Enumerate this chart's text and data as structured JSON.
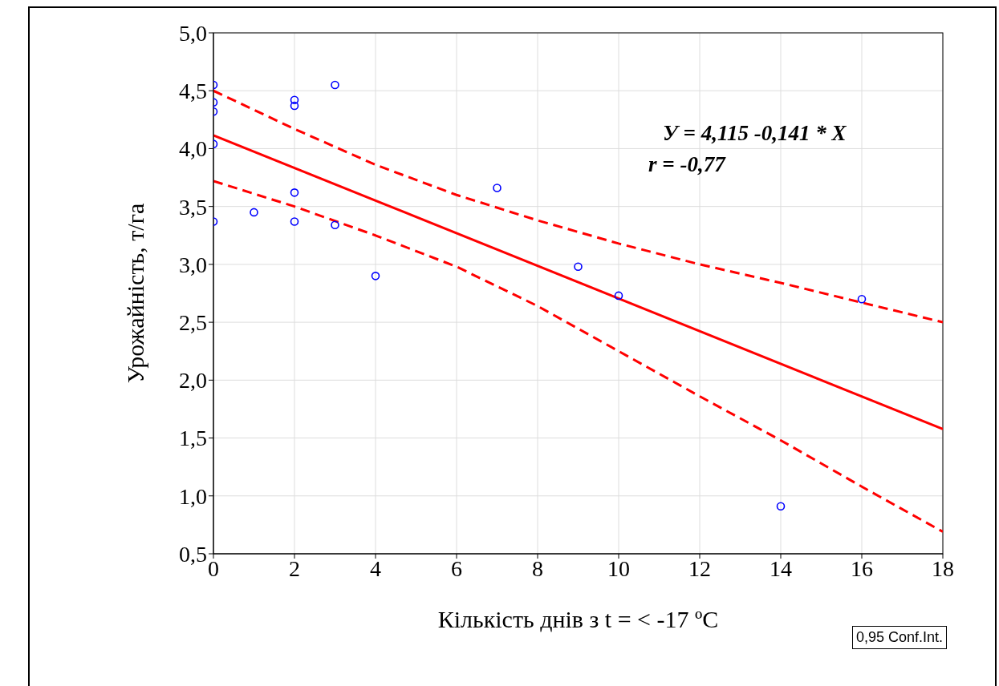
{
  "chart_data": {
    "type": "scatter",
    "xlabel": "Кількість днів з t = < -17 ºC",
    "ylabel": "Урожайність, т/га",
    "annotations": [
      "У = 4,115 -0,141 * X",
      "r = -0,77",
      "0,95 Conf.Int."
    ],
    "xlim": [
      0,
      18
    ],
    "xticks": [
      0,
      2,
      4,
      6,
      8,
      10,
      12,
      14,
      16,
      18
    ],
    "ylim": [
      0.5,
      5
    ],
    "yticks": [
      {
        "value": 0.5,
        "label": "0,5"
      },
      {
        "value": 1,
        "label": "1,0"
      },
      {
        "value": 1.5,
        "label": "1,5"
      },
      {
        "value": 2,
        "label": "2,0"
      },
      {
        "value": 2.5,
        "label": "2,5"
      },
      {
        "value": 3,
        "label": "3,0"
      },
      {
        "value": 3.5,
        "label": "3,5"
      },
      {
        "value": 4,
        "label": "4,0"
      },
      {
        "value": 4.5,
        "label": "4,5"
      },
      {
        "value": 5,
        "label": "5,0"
      }
    ],
    "grid": true,
    "series": [
      {
        "color": "#0000ff",
        "marker": "circle",
        "x": [
          0,
          0,
          0,
          0,
          0,
          1,
          2,
          2,
          2,
          2,
          3,
          3,
          4,
          7,
          9,
          10,
          14,
          16
        ],
        "values": [
          4.55,
          4.4,
          4.32,
          4.04,
          3.37,
          3.45,
          4.42,
          4.37,
          3.62,
          3.37,
          4.55,
          3.34,
          2.9,
          3.66,
          2.98,
          2.73,
          0.91,
          2.7
        ]
      },
      {
        "type": "line",
        "color": "#ff0000",
        "marker": "none",
        "line_style": "solid",
        "x": [
          0,
          18
        ],
        "values": [
          4.115,
          1.577
        ]
      },
      {
        "type": "line",
        "color": "#ff0000",
        "marker": "none",
        "line_style": "dashed",
        "x": [
          0,
          2,
          4,
          6,
          8,
          10,
          12,
          14,
          16,
          18
        ],
        "values": [
          4.5,
          4.17,
          3.86,
          3.6,
          3.38,
          3.18,
          3.0,
          2.84,
          2.67,
          2.5
        ]
      },
      {
        "type": "line",
        "color": "#ff0000",
        "marker": "none",
        "line_style": "dashed",
        "x": [
          0,
          2,
          4,
          6,
          8,
          10,
          12,
          14,
          16,
          18
        ],
        "values": [
          3.72,
          3.5,
          3.25,
          2.98,
          2.64,
          2.25,
          1.86,
          1.48,
          1.08,
          0.69
        ]
      }
    ]
  }
}
